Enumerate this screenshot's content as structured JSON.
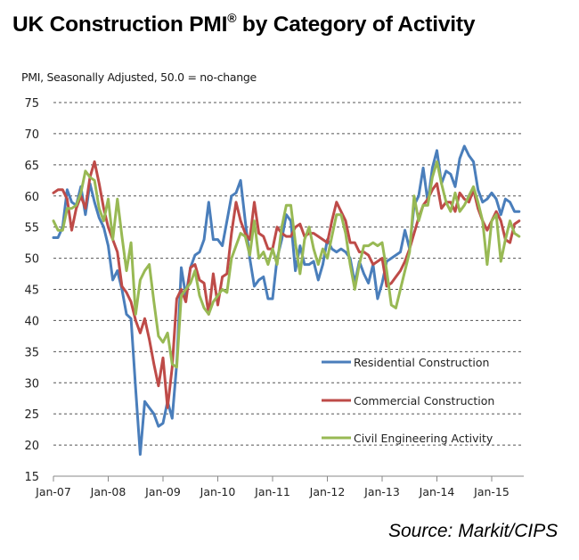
{
  "chart_data": {
    "type": "line",
    "title": "UK Construction PMI",
    "title_superscript": "®",
    "title_suffix": " by Category of Activity",
    "ylabel": "PMI, Seasonally Adjusted, 50.0 = no-change",
    "xlabel": "",
    "source": "Source: Markit/CIPS",
    "ylim": [
      15,
      75
    ],
    "yticks": [
      15,
      20,
      25,
      30,
      35,
      40,
      45,
      50,
      55,
      60,
      65,
      70,
      75
    ],
    "grid": "horizontal-dashed",
    "x_start": "Jan-07",
    "x_end": "Jul-15",
    "x_frequency": "monthly",
    "xticks": [
      "Jan-07",
      "Jan-08",
      "Jan-09",
      "Jan-10",
      "Jan-11",
      "Jan-12",
      "Jan-13",
      "Jan-14",
      "Jan-15"
    ],
    "legend_position": "lower-right",
    "series": [
      {
        "name": "Residential Construction",
        "color": "#4a7ebb",
        "values": [
          53.3,
          53.3,
          55,
          61,
          59,
          58.5,
          61.5,
          57,
          62,
          59,
          56.5,
          55,
          52,
          46.5,
          48,
          45,
          41,
          40.3,
          29,
          18.5,
          27,
          26,
          25,
          23,
          23.5,
          27,
          24.3,
          33,
          48.5,
          44,
          48.5,
          50.5,
          51,
          53,
          59,
          53,
          53,
          52,
          56,
          60,
          60.5,
          62.5,
          56,
          50,
          45.5,
          46.5,
          47,
          43.5,
          43.5,
          50,
          53,
          57,
          56,
          48,
          52,
          49,
          49,
          49.5,
          46.5,
          49,
          53,
          51.5,
          51,
          51.5,
          51,
          50,
          46,
          49.5,
          47.5,
          46,
          49,
          43.5,
          46,
          49.5,
          50,
          50.5,
          51,
          54.5,
          51.5,
          58.5,
          60,
          64.5,
          59,
          64.5,
          67.3,
          62,
          64,
          63.5,
          61.5,
          66,
          68,
          66.5,
          65.5,
          61,
          59,
          59.5,
          60.5,
          59.5,
          57,
          59.5,
          59,
          57.5,
          57.5
        ]
      },
      {
        "name": "Commercial Construction",
        "color": "#be4b48",
        "values": [
          60.5,
          61,
          61,
          59.5,
          54.5,
          58,
          60,
          58,
          63,
          65.5,
          62,
          58,
          55,
          53,
          51,
          45.5,
          44.5,
          43,
          40,
          38,
          40.3,
          37,
          33,
          29.5,
          34,
          26,
          32.5,
          43.5,
          45,
          43,
          48.5,
          49,
          46.5,
          46,
          41,
          47.5,
          42.5,
          47,
          47.5,
          54,
          59,
          56,
          54,
          53,
          59,
          54,
          53.5,
          51.5,
          51.5,
          55,
          54,
          53.5,
          53.5,
          55,
          55.5,
          53.5,
          54,
          54,
          53.5,
          53,
          52.5,
          56,
          59,
          57.5,
          56,
          52.5,
          52.5,
          51,
          51,
          50.5,
          49,
          49.5,
          50,
          45.5,
          46,
          47,
          48,
          49.5,
          51.5,
          54,
          56.5,
          58.5,
          59.5,
          61,
          62,
          58,
          59,
          59,
          57.5,
          60.5,
          59.5,
          59,
          61,
          58,
          56,
          54.5,
          56,
          57.5,
          56,
          53,
          52.5,
          55.5,
          56
        ]
      },
      {
        "name": "Civil Engineering Activity",
        "color": "#98b954",
        "values": [
          56,
          54.5,
          54.5,
          58,
          58,
          58.5,
          60.5,
          64,
          63,
          62.5,
          58,
          56,
          59.5,
          53,
          59.5,
          53.5,
          48,
          52.5,
          41,
          46.5,
          48,
          49,
          43,
          37.5,
          36.5,
          38,
          33,
          32.5,
          44,
          45,
          46,
          48,
          44,
          42,
          41,
          43,
          44,
          45,
          44.5,
          50,
          52,
          54,
          53.5,
          50.5,
          56,
          50,
          51,
          49,
          51.5,
          49,
          55,
          58.5,
          58.5,
          52.5,
          47.5,
          53,
          55,
          51.5,
          49,
          51.5,
          50,
          53.5,
          57,
          57,
          54,
          49,
          45,
          49,
          52,
          52,
          52.5,
          52,
          52.5,
          48,
          42.5,
          42,
          45,
          48,
          51,
          60,
          56,
          58.5,
          58.5,
          63,
          65.5,
          62,
          59,
          57.5,
          60.5,
          57.5,
          58.5,
          60,
          61.5,
          59,
          56,
          49,
          56,
          57,
          49.5,
          53,
          56,
          54,
          53.5
        ]
      }
    ]
  }
}
